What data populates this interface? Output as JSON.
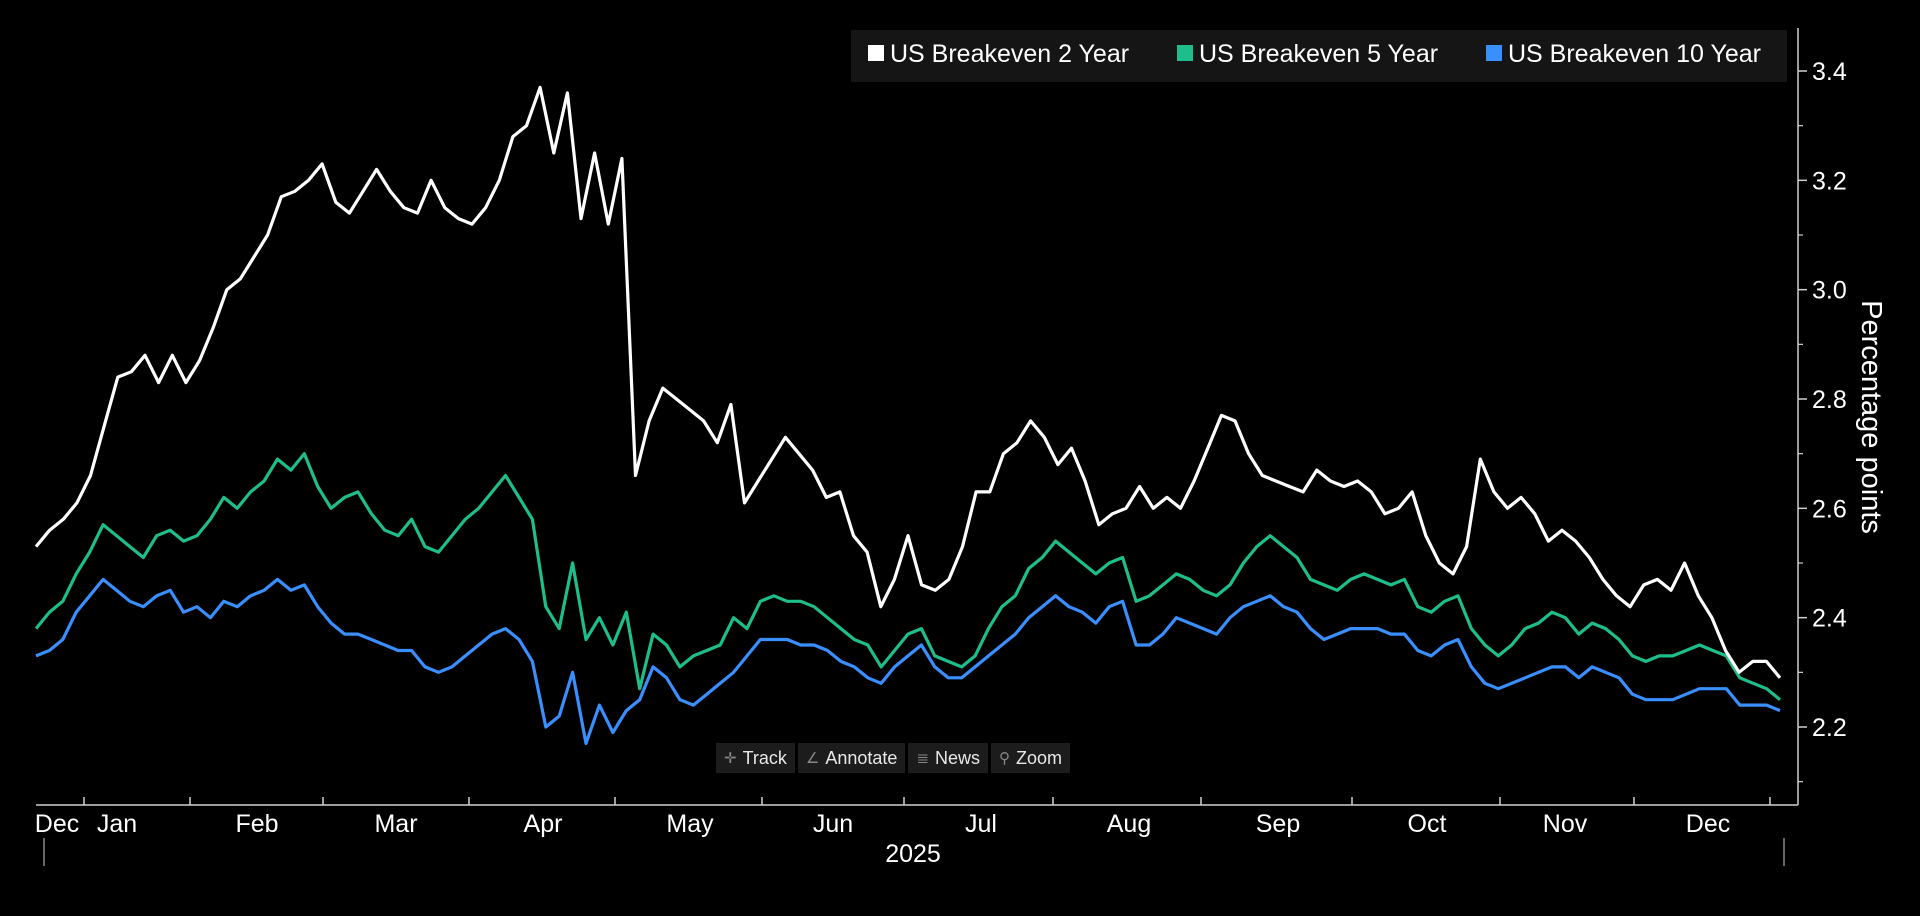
{
  "chart_data": {
    "type": "line",
    "ylabel": "Percentage points",
    "ylim": [
      2.06,
      3.48
    ],
    "yticks": [
      "3.4",
      "3.2",
      "3.0",
      "2.8",
      "2.6",
      "2.4",
      "2.2"
    ],
    "xtick_labels": [
      "Dec",
      "Jan",
      "Feb",
      "Mar",
      "Apr",
      "May",
      "Jun",
      "Jul",
      "Aug",
      "Sep",
      "Oct",
      "Nov",
      "Dec"
    ],
    "xlabel": "2025",
    "series": [
      {
        "name": "US Breakeven 2 Year",
        "color": "#ffffff",
        "values": [
          2.53,
          2.56,
          2.58,
          2.61,
          2.66,
          2.75,
          2.84,
          2.85,
          2.88,
          2.83,
          2.88,
          2.83,
          2.87,
          2.93,
          3.0,
          3.02,
          3.06,
          3.1,
          3.17,
          3.18,
          3.2,
          3.23,
          3.16,
          3.14,
          3.18,
          3.22,
          3.18,
          3.15,
          3.14,
          3.2,
          3.15,
          3.13,
          3.12,
          3.15,
          3.2,
          3.28,
          3.3,
          3.37,
          3.25,
          3.36,
          3.13,
          3.25,
          3.12,
          3.24,
          2.66,
          2.76,
          2.82,
          2.8,
          2.78,
          2.76,
          2.72,
          2.79,
          2.61,
          2.65,
          2.69,
          2.73,
          2.7,
          2.67,
          2.62,
          2.63,
          2.55,
          2.52,
          2.42,
          2.47,
          2.55,
          2.46,
          2.45,
          2.47,
          2.53,
          2.63,
          2.63,
          2.7,
          2.72,
          2.76,
          2.73,
          2.68,
          2.71,
          2.65,
          2.57,
          2.59,
          2.6,
          2.64,
          2.6,
          2.62,
          2.6,
          2.65,
          2.71,
          2.77,
          2.76,
          2.7,
          2.66,
          2.65,
          2.64,
          2.63,
          2.67,
          2.65,
          2.64,
          2.65,
          2.63,
          2.59,
          2.6,
          2.63,
          2.55,
          2.5,
          2.48,
          2.53,
          2.69,
          2.63,
          2.6,
          2.62,
          2.59,
          2.54,
          2.56,
          2.54,
          2.51,
          2.47,
          2.44,
          2.42,
          2.46,
          2.47,
          2.45,
          2.5,
          2.44,
          2.4,
          2.34,
          2.3,
          2.32,
          2.32,
          2.29
        ]
      },
      {
        "name": "US Breakeven 5 Year",
        "color": "#1ebe8c",
        "values": [
          2.38,
          2.41,
          2.43,
          2.48,
          2.52,
          2.57,
          2.55,
          2.53,
          2.51,
          2.55,
          2.56,
          2.54,
          2.55,
          2.58,
          2.62,
          2.6,
          2.63,
          2.65,
          2.69,
          2.67,
          2.7,
          2.64,
          2.6,
          2.62,
          2.63,
          2.59,
          2.56,
          2.55,
          2.58,
          2.53,
          2.52,
          2.55,
          2.58,
          2.6,
          2.63,
          2.66,
          2.62,
          2.58,
          2.42,
          2.38,
          2.5,
          2.36,
          2.4,
          2.35,
          2.41,
          2.27,
          2.37,
          2.35,
          2.31,
          2.33,
          2.34,
          2.35,
          2.4,
          2.38,
          2.43,
          2.44,
          2.43,
          2.43,
          2.42,
          2.4,
          2.38,
          2.36,
          2.35,
          2.31,
          2.34,
          2.37,
          2.38,
          2.33,
          2.32,
          2.31,
          2.33,
          2.38,
          2.42,
          2.44,
          2.49,
          2.51,
          2.54,
          2.52,
          2.5,
          2.48,
          2.5,
          2.51,
          2.43,
          2.44,
          2.46,
          2.48,
          2.47,
          2.45,
          2.44,
          2.46,
          2.5,
          2.53,
          2.55,
          2.53,
          2.51,
          2.47,
          2.46,
          2.45,
          2.47,
          2.48,
          2.47,
          2.46,
          2.47,
          2.42,
          2.41,
          2.43,
          2.44,
          2.38,
          2.35,
          2.33,
          2.35,
          2.38,
          2.39,
          2.41,
          2.4,
          2.37,
          2.39,
          2.38,
          2.36,
          2.33,
          2.32,
          2.33,
          2.33,
          2.34,
          2.35,
          2.34,
          2.33,
          2.29,
          2.28,
          2.27,
          2.25
        ]
      },
      {
        "name": "US Breakeven 10 Year",
        "color": "#3a8fff",
        "values": [
          2.33,
          2.34,
          2.36,
          2.41,
          2.44,
          2.47,
          2.45,
          2.43,
          2.42,
          2.44,
          2.45,
          2.41,
          2.42,
          2.4,
          2.43,
          2.42,
          2.44,
          2.45,
          2.47,
          2.45,
          2.46,
          2.42,
          2.39,
          2.37,
          2.37,
          2.36,
          2.35,
          2.34,
          2.34,
          2.31,
          2.3,
          2.31,
          2.33,
          2.35,
          2.37,
          2.38,
          2.36,
          2.32,
          2.2,
          2.22,
          2.3,
          2.17,
          2.24,
          2.19,
          2.23,
          2.25,
          2.31,
          2.29,
          2.25,
          2.24,
          2.26,
          2.28,
          2.3,
          2.33,
          2.36,
          2.36,
          2.36,
          2.35,
          2.35,
          2.34,
          2.32,
          2.31,
          2.29,
          2.28,
          2.31,
          2.33,
          2.35,
          2.31,
          2.29,
          2.29,
          2.31,
          2.33,
          2.35,
          2.37,
          2.4,
          2.42,
          2.44,
          2.42,
          2.41,
          2.39,
          2.42,
          2.43,
          2.35,
          2.35,
          2.37,
          2.4,
          2.39,
          2.38,
          2.37,
          2.4,
          2.42,
          2.43,
          2.44,
          2.42,
          2.41,
          2.38,
          2.36,
          2.37,
          2.38,
          2.38,
          2.38,
          2.37,
          2.37,
          2.34,
          2.33,
          2.35,
          2.36,
          2.31,
          2.28,
          2.27,
          2.28,
          2.29,
          2.3,
          2.31,
          2.31,
          2.29,
          2.31,
          2.3,
          2.29,
          2.26,
          2.25,
          2.25,
          2.25,
          2.26,
          2.27,
          2.27,
          2.27,
          2.24,
          2.24,
          2.24,
          2.23
        ]
      }
    ]
  },
  "toolbar": {
    "track_label": "Track",
    "annotate_label": "Annotate",
    "news_label": "News",
    "zoom_label": "Zoom"
  }
}
